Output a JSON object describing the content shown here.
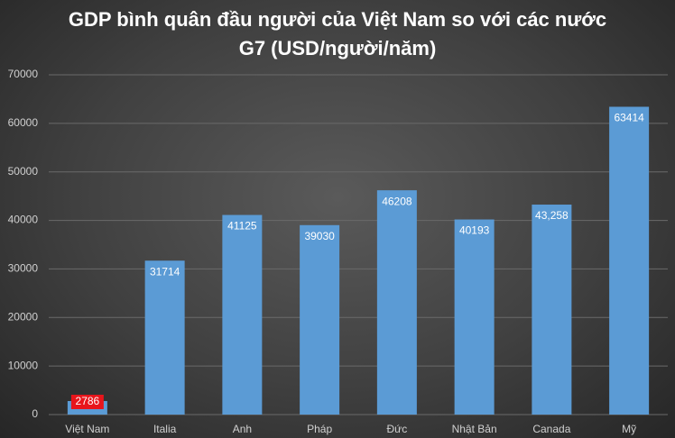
{
  "chart_data": {
    "type": "bar",
    "title": "GDP bình quân đầu người của Việt Nam so với các nước G7 (USD/người/năm)",
    "categories": [
      "Việt Nam",
      "Italia",
      "Anh",
      "Pháp",
      "Đức",
      "Nhật Bản",
      "Canada",
      "Mỹ"
    ],
    "values": [
      2786,
      31714,
      41125,
      39030,
      46208,
      40193,
      43258,
      63414
    ],
    "value_labels": [
      "2786",
      "31714",
      "41125",
      "39030",
      "46208",
      "40193",
      "43,258",
      "63414"
    ],
    "color": "#5b9bd5",
    "ylim": [
      0,
      70000
    ],
    "yticks": [
      0,
      10000,
      20000,
      30000,
      40000,
      50000,
      60000,
      70000
    ],
    "grid": true
  }
}
